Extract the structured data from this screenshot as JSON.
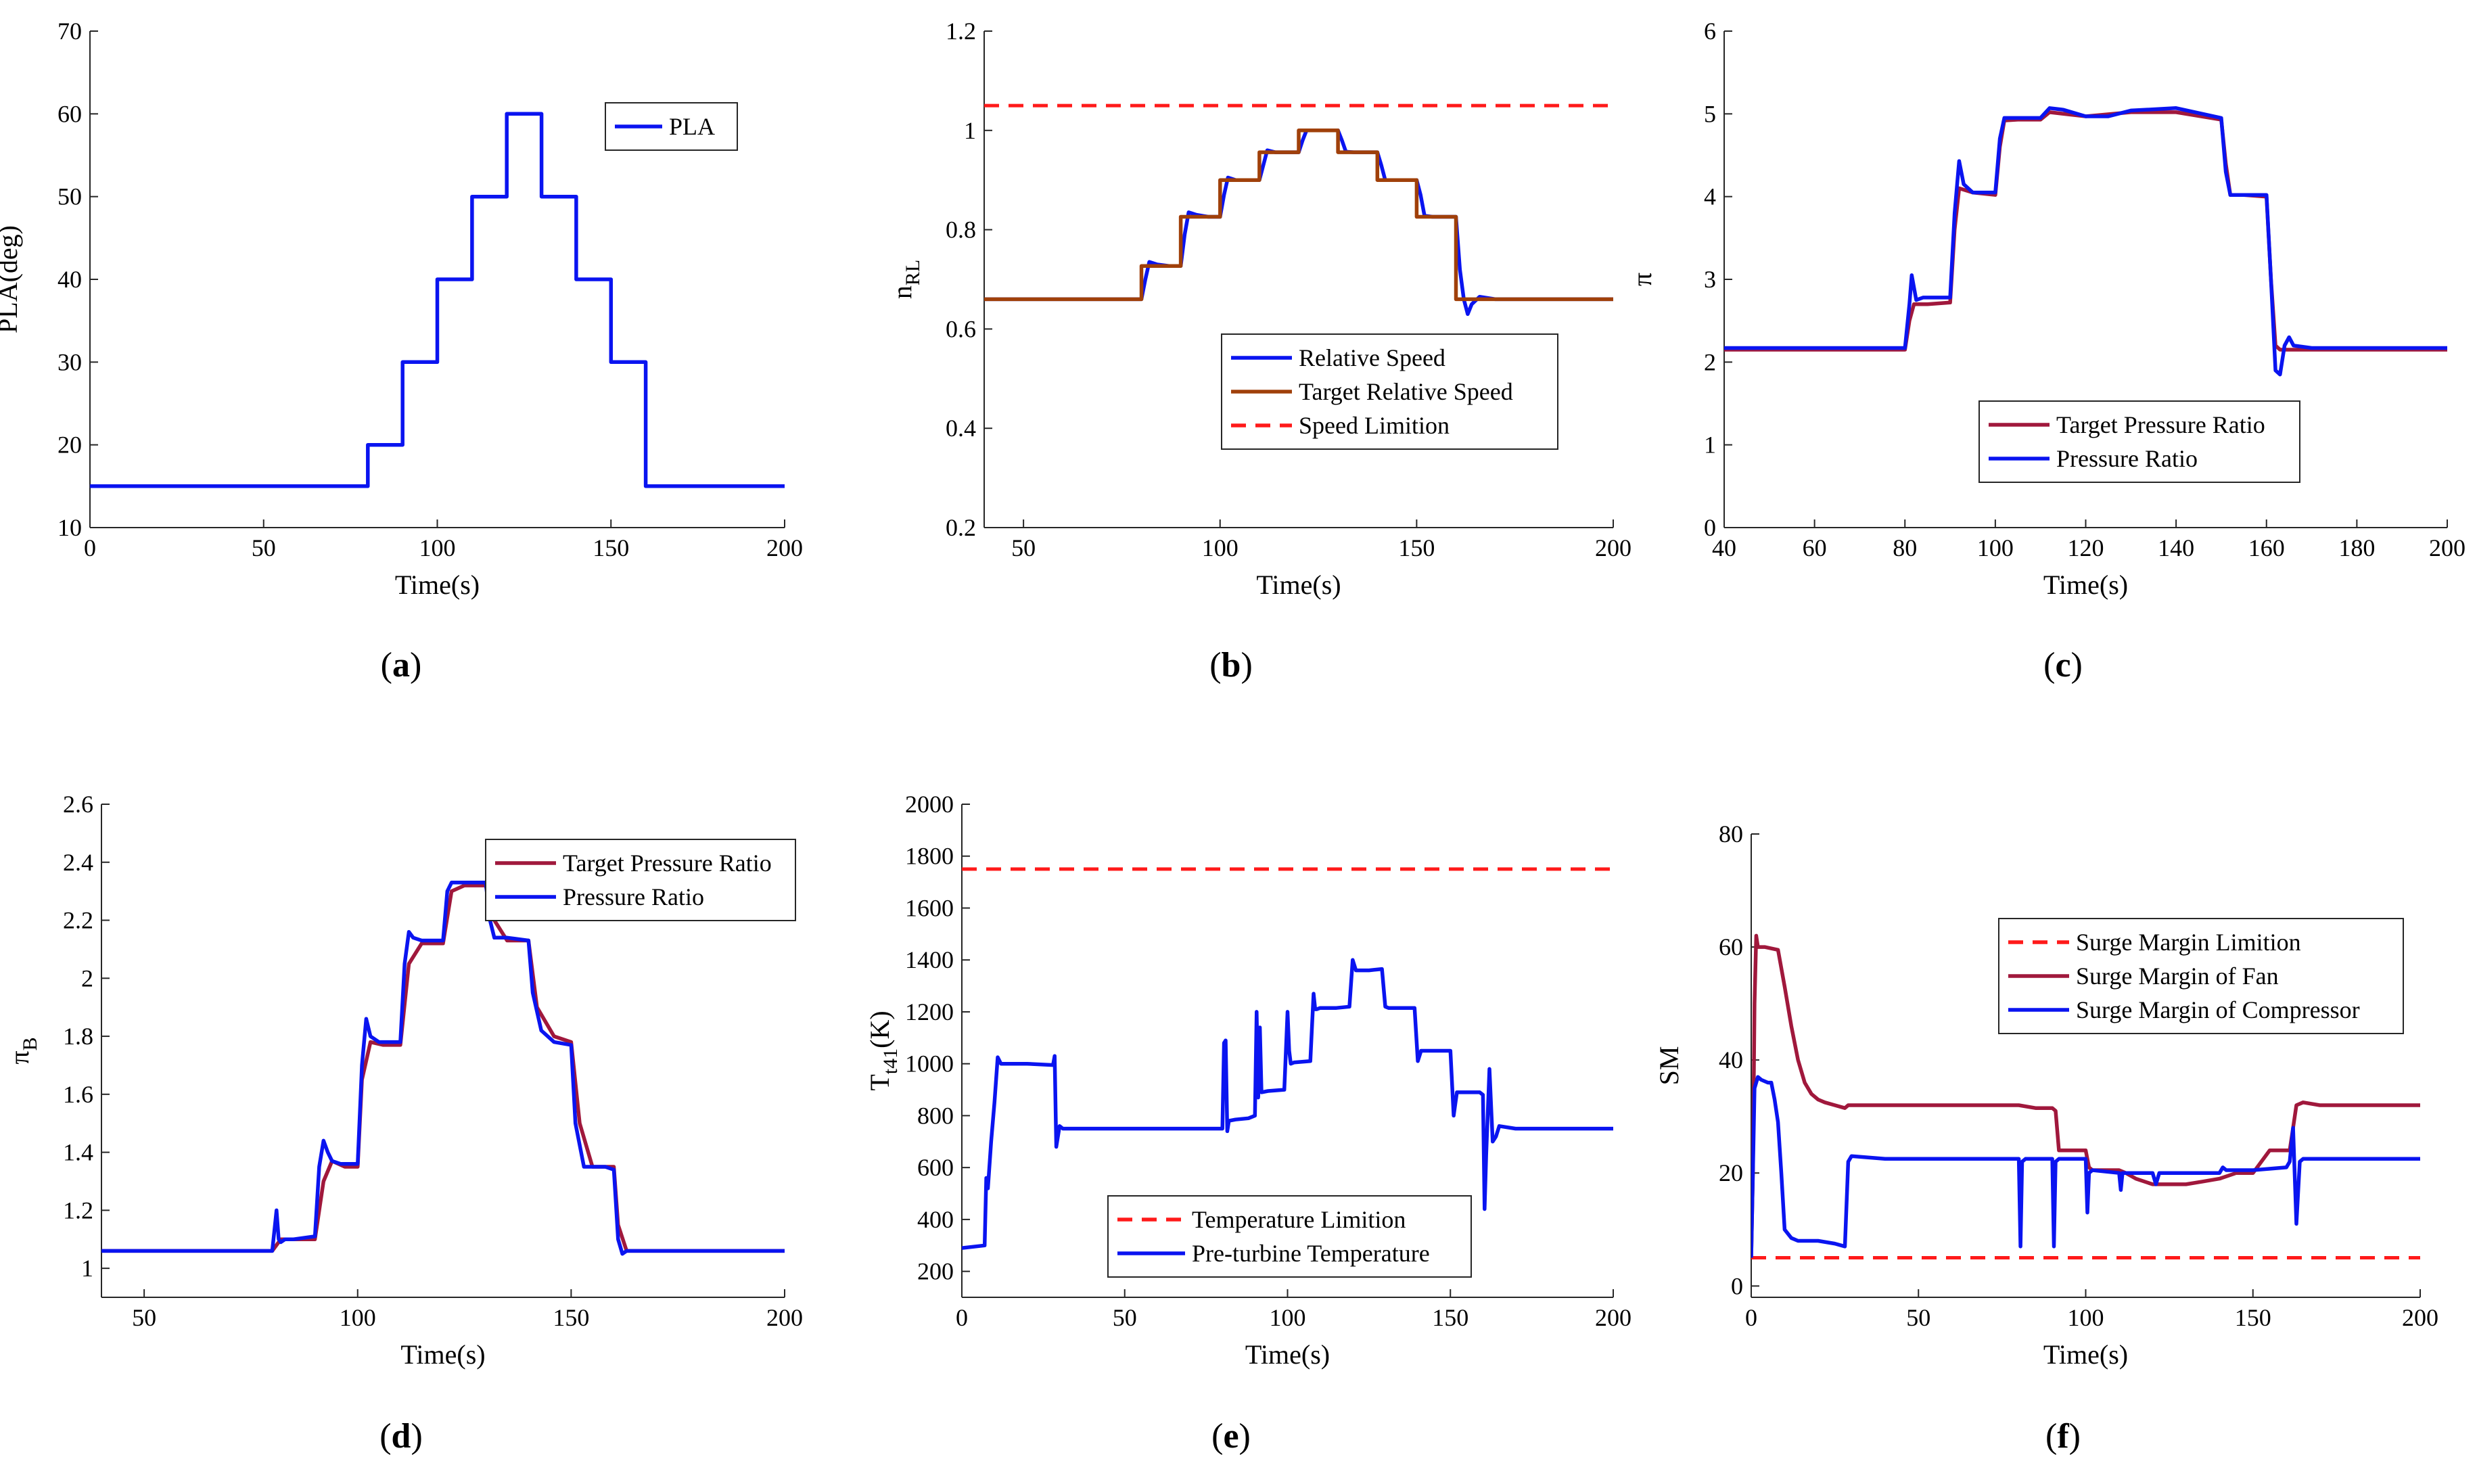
{
  "chart_data": [
    {
      "id": "a",
      "type": "line",
      "caption": "(a)",
      "xlabel": "Time(s)",
      "ylabel": "PLA(deg)",
      "xlim": [
        0,
        200
      ],
      "ylim": [
        10,
        70
      ],
      "xticks": [
        0,
        50,
        100,
        150,
        200
      ],
      "yticks": [
        10,
        20,
        30,
        40,
        50,
        60,
        70
      ],
      "legend_position": "top-right",
      "series": [
        {
          "name": "PLA",
          "color": "#0a14f0",
          "style": "solid",
          "x": [
            0,
            80,
            80,
            90,
            90,
            100,
            100,
            110,
            110,
            120,
            120,
            130,
            130,
            140,
            140,
            150,
            150,
            160,
            160,
            200
          ],
          "y": [
            15,
            15,
            20,
            20,
            30,
            30,
            40,
            40,
            50,
            50,
            60,
            60,
            50,
            50,
            40,
            40,
            30,
            30,
            15,
            15
          ]
        }
      ]
    },
    {
      "id": "b",
      "type": "line",
      "caption": "(b)",
      "xlabel": "Time(s)",
      "ylabel": "n",
      "ylabel_sub": "RL",
      "xlim": [
        40,
        200
      ],
      "ylim": [
        0.2,
        1.2
      ],
      "xticks": [
        50,
        100,
        150,
        200
      ],
      "yticks": [
        0.2,
        0.4,
        0.6,
        0.8,
        1,
        1.2
      ],
      "legend_position": "lower-right",
      "series": [
        {
          "name": "Relative Speed",
          "color": "#0a14f0",
          "style": "solid",
          "x": [
            40,
            80,
            81,
            82,
            84,
            87,
            90,
            91,
            92,
            94,
            97,
            100,
            101,
            102,
            104,
            107,
            110,
            111,
            112,
            114,
            117,
            120,
            121,
            122,
            124,
            127,
            130,
            131,
            132,
            134,
            137,
            140,
            141,
            142,
            144,
            147,
            150,
            151,
            152,
            154,
            157,
            160,
            161,
            162,
            163,
            164,
            166,
            170,
            200
          ],
          "y": [
            0.66,
            0.66,
            0.7,
            0.735,
            0.73,
            0.727,
            0.727,
            0.79,
            0.835,
            0.83,
            0.826,
            0.826,
            0.87,
            0.905,
            0.9,
            0.9,
            0.9,
            0.93,
            0.96,
            0.956,
            0.956,
            0.956,
            0.98,
            1.0,
            1.0,
            1.0,
            1.0,
            0.98,
            0.957,
            0.956,
            0.956,
            0.956,
            0.93,
            0.9,
            0.9,
            0.9,
            0.9,
            0.87,
            0.828,
            0.826,
            0.826,
            0.826,
            0.72,
            0.66,
            0.63,
            0.65,
            0.665,
            0.66,
            0.66
          ]
        },
        {
          "name": "Target Relative Speed",
          "color": "#a0400a",
          "style": "solid",
          "x": [
            40,
            80,
            80,
            90,
            90,
            100,
            100,
            110,
            110,
            120,
            120,
            130,
            130,
            140,
            140,
            150,
            150,
            160,
            160,
            200
          ],
          "y": [
            0.66,
            0.66,
            0.727,
            0.727,
            0.826,
            0.826,
            0.9,
            0.9,
            0.956,
            0.956,
            1.0,
            1.0,
            0.956,
            0.956,
            0.9,
            0.9,
            0.826,
            0.826,
            0.66,
            0.66
          ]
        },
        {
          "name": "Speed Limition",
          "color": "#ff1a1a",
          "style": "dashed",
          "x": [
            40,
            200
          ],
          "y": [
            1.05,
            1.05
          ]
        }
      ]
    },
    {
      "id": "c",
      "type": "line",
      "caption": "(c)",
      "xlabel": "Time(s)",
      "ylabel": "π",
      "xlim": [
        40,
        200
      ],
      "ylim": [
        0,
        6
      ],
      "xticks": [
        40,
        60,
        80,
        100,
        120,
        140,
        160,
        180,
        200
      ],
      "yticks": [
        0,
        1,
        2,
        3,
        4,
        5,
        6
      ],
      "legend_position": "lower-right",
      "series": [
        {
          "name": "Target Pressure Ratio",
          "color": "#a0183c",
          "style": "solid",
          "x": [
            40,
            80,
            81,
            82,
            85,
            90,
            91,
            92,
            95,
            100,
            101,
            102,
            105,
            110,
            112,
            120,
            130,
            140,
            150,
            151,
            152,
            155,
            160,
            161,
            162,
            163,
            165,
            200
          ],
          "y": [
            2.15,
            2.15,
            2.5,
            2.7,
            2.7,
            2.72,
            3.6,
            4.1,
            4.05,
            4.02,
            4.6,
            4.92,
            4.93,
            4.93,
            5.02,
            4.97,
            5.02,
            5.02,
            4.93,
            4.4,
            4.02,
            4.02,
            4.0,
            3.0,
            2.2,
            2.15,
            2.15,
            2.15
          ]
        },
        {
          "name": "Pressure Ratio",
          "color": "#0a14f0",
          "style": "solid",
          "x": [
            40,
            80,
            81,
            81.5,
            82.5,
            84,
            90,
            91,
            92,
            93,
            95,
            100,
            101,
            102,
            105,
            110,
            112,
            115,
            120,
            125,
            130,
            140,
            150,
            151,
            152,
            155,
            160,
            161,
            162,
            163,
            164,
            165,
            166,
            170,
            200
          ],
          "y": [
            2.17,
            2.17,
            2.7,
            3.05,
            2.75,
            2.78,
            2.78,
            3.8,
            4.43,
            4.15,
            4.05,
            4.05,
            4.7,
            4.95,
            4.95,
            4.95,
            5.07,
            5.05,
            4.97,
            4.97,
            5.04,
            5.07,
            4.95,
            4.3,
            4.02,
            4.02,
            4.02,
            3.0,
            1.9,
            1.85,
            2.2,
            2.3,
            2.2,
            2.17,
            2.17
          ]
        }
      ]
    },
    {
      "id": "d",
      "type": "line",
      "caption": "(d)",
      "xlabel": "Time(s)",
      "ylabel": "π",
      "ylabel_sub": "B",
      "xlim": [
        40,
        200
      ],
      "ylim": [
        0.9,
        2.6
      ],
      "xticks": [
        50,
        100,
        150,
        200
      ],
      "yticks": [
        1,
        1.2,
        1.4,
        1.6,
        1.8,
        2,
        2.2,
        2.4,
        2.6
      ],
      "legend_position": "top-right",
      "series": [
        {
          "name": "Target Pressure Ratio",
          "color": "#a0183c",
          "style": "solid",
          "x": [
            40,
            80,
            82,
            85,
            90,
            92,
            94,
            97,
            100,
            101,
            103,
            106,
            110,
            112,
            115,
            120,
            122,
            125,
            130,
            132,
            135,
            140,
            142,
            146,
            150,
            152,
            155,
            160,
            161,
            163,
            200
          ],
          "y": [
            1.06,
            1.06,
            1.1,
            1.1,
            1.1,
            1.3,
            1.37,
            1.35,
            1.35,
            1.65,
            1.78,
            1.77,
            1.77,
            2.05,
            2.12,
            2.12,
            2.3,
            2.32,
            2.32,
            2.2,
            2.13,
            2.13,
            1.9,
            1.8,
            1.78,
            1.5,
            1.35,
            1.35,
            1.15,
            1.06,
            1.06
          ]
        },
        {
          "name": "Pressure Ratio",
          "color": "#0a14f0",
          "style": "solid",
          "x": [
            40,
            80,
            81,
            81.5,
            82,
            83,
            85,
            90,
            91,
            92,
            93,
            94,
            96,
            100,
            101,
            102,
            103,
            105,
            110,
            111,
            112,
            113,
            115,
            120,
            121,
            122,
            125,
            130,
            131,
            132,
            135,
            140,
            141,
            143,
            146,
            150,
            151,
            153,
            158,
            160,
            161,
            162,
            163,
            200
          ],
          "y": [
            1.06,
            1.06,
            1.2,
            1.1,
            1.09,
            1.1,
            1.1,
            1.11,
            1.35,
            1.44,
            1.4,
            1.37,
            1.36,
            1.36,
            1.7,
            1.86,
            1.8,
            1.78,
            1.78,
            2.05,
            2.16,
            2.14,
            2.13,
            2.13,
            2.3,
            2.33,
            2.33,
            2.33,
            2.2,
            2.14,
            2.14,
            2.13,
            1.95,
            1.82,
            1.78,
            1.77,
            1.5,
            1.35,
            1.35,
            1.34,
            1.1,
            1.05,
            1.06,
            1.06
          ]
        }
      ]
    },
    {
      "id": "e",
      "type": "line",
      "caption": "(e)",
      "xlabel": "Time(s)",
      "ylabel": "T",
      "ylabel_sub": "t41",
      "ylabel_suffix": "(K)",
      "xlim": [
        0,
        200
      ],
      "ylim": [
        100,
        2000
      ],
      "xticks": [
        0,
        50,
        100,
        150,
        200
      ],
      "yticks": [
        200,
        400,
        600,
        800,
        1000,
        1200,
        1400,
        1600,
        1800,
        2000
      ],
      "legend_position": "lower-right",
      "series": [
        {
          "name": "Temperature Limition",
          "color": "#ff1a1a",
          "style": "dashed",
          "x": [
            0,
            200
          ],
          "y": [
            1750,
            1750
          ]
        },
        {
          "name": "Pre-turbine Temperature",
          "color": "#0a14f0",
          "style": "solid",
          "x": [
            0,
            7,
            7.5,
            8,
            9,
            10,
            11,
            12,
            20,
            28,
            28.5,
            29,
            30,
            31,
            40,
            60,
            80,
            80.5,
            81,
            81.5,
            82,
            84,
            88,
            90,
            90.5,
            91,
            91.5,
            92,
            94,
            99,
            100,
            100.5,
            101,
            102,
            107,
            108,
            108.5,
            109,
            110,
            115,
            119,
            120,
            121,
            122,
            125,
            129,
            130,
            131,
            135,
            139,
            140,
            141,
            145,
            150,
            151,
            152,
            155,
            159,
            160,
            160.5,
            161,
            162,
            163,
            164,
            165,
            170,
            200
          ],
          "y": [
            290,
            300,
            560,
            520,
            700,
            850,
            1025,
            1000,
            1000,
            995,
            1030,
            680,
            760,
            750,
            750,
            750,
            750,
            1080,
            1090,
            740,
            780,
            785,
            790,
            800,
            1200,
            870,
            1140,
            890,
            895,
            900,
            1200,
            1050,
            1000,
            1005,
            1010,
            1270,
            1210,
            1210,
            1215,
            1215,
            1220,
            1400,
            1360,
            1360,
            1360,
            1365,
            1220,
            1215,
            1215,
            1215,
            1010,
            1050,
            1050,
            1050,
            800,
            890,
            890,
            890,
            880,
            440,
            650,
            980,
            700,
            720,
            760,
            750,
            750
          ]
        }
      ]
    },
    {
      "id": "f",
      "type": "line",
      "caption": "(f)",
      "xlabel": "Time(s)",
      "ylabel": "SM",
      "xlim": [
        0,
        200
      ],
      "ylim": [
        -2,
        80
      ],
      "xticks": [
        0,
        50,
        100,
        150,
        200
      ],
      "yticks": [
        0,
        20,
        40,
        60,
        80
      ],
      "legend_position": "top-right",
      "series": [
        {
          "name": "Surge Margin Limition",
          "color": "#ff1a1a",
          "style": "dashed",
          "x": [
            0,
            200
          ],
          "y": [
            5,
            5
          ]
        },
        {
          "name": "Surge Margin of Fan",
          "color": "#a0183c",
          "style": "solid",
          "x": [
            0,
            0.5,
            1,
            1.5,
            2,
            3,
            4,
            8,
            10,
            12,
            14,
            16,
            18,
            20,
            22,
            25,
            28,
            29,
            30,
            40,
            50,
            60,
            70,
            80,
            85,
            86,
            90,
            91,
            92,
            93,
            100,
            101,
            102,
            110,
            112,
            115,
            120,
            125,
            130,
            135,
            140,
            145,
            150,
            155,
            160,
            161,
            162,
            163,
            165,
            170,
            200
          ],
          "y": [
            5,
            20,
            50,
            62,
            60,
            60,
            60,
            59.5,
            53,
            46,
            40,
            36,
            34,
            33,
            32.5,
            32,
            31.5,
            32,
            32,
            32,
            32,
            32,
            32,
            32,
            31.5,
            31.5,
            31.5,
            31,
            24,
            24,
            24,
            21,
            20.5,
            20.5,
            20,
            19,
            18,
            18,
            18,
            18.5,
            19,
            20,
            20,
            24,
            24,
            24,
            28,
            32,
            32.5,
            32,
            32
          ]
        },
        {
          "name": "Surge Margin of Compressor",
          "color": "#0a14f0",
          "style": "solid",
          "x": [
            0,
            0.5,
            1,
            2,
            3,
            5,
            6,
            7,
            8,
            9,
            10,
            12,
            14,
            20,
            25,
            28,
            29,
            30,
            40,
            50,
            60,
            70,
            79,
            80,
            80.5,
            81,
            82,
            90,
            90.5,
            91,
            92,
            100,
            100.5,
            101,
            102,
            110,
            110.5,
            111,
            112,
            120,
            121,
            122,
            130,
            140,
            141,
            142,
            150,
            160,
            161,
            162,
            163,
            164,
            165,
            170,
            200
          ],
          "y": [
            5,
            20,
            35,
            37,
            36.5,
            36,
            36,
            33,
            29,
            20,
            10,
            8.5,
            8,
            8,
            7.5,
            7,
            22,
            23,
            22.5,
            22.5,
            22.5,
            22.5,
            22.5,
            22.5,
            7,
            22,
            22.5,
            22.5,
            7,
            22,
            22.5,
            22.5,
            13,
            20,
            20.5,
            20,
            17,
            20,
            20,
            20,
            18,
            20,
            20,
            20,
            21,
            20.5,
            20.5,
            21,
            22,
            28,
            11,
            22,
            22.5,
            22.5,
            22.5
          ]
        }
      ]
    }
  ]
}
